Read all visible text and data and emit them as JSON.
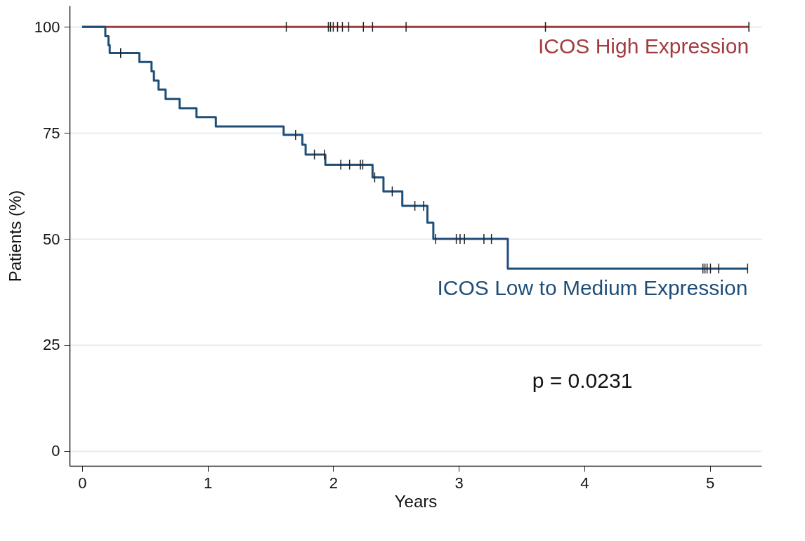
{
  "chart_data": {
    "type": "step",
    "xlabel": "Years",
    "ylabel": "Patients (%)",
    "xlim": [
      -0.1,
      5.41
    ],
    "xticks": [
      0,
      1,
      2,
      3,
      4,
      5
    ],
    "ylim": [
      -3.5,
      105
    ],
    "yticks": [
      0,
      25,
      50,
      75,
      100
    ],
    "grid": "y",
    "legend": false,
    "annotations": [
      "p = 0.0231"
    ],
    "series": [
      {
        "name": "ICOS High Expression",
        "type": "step",
        "color": "#a23b3f",
        "x": [
          0,
          5.31
        ],
        "values": [
          100,
          100
        ]
      },
      {
        "name": "ICOS Low to Medium Expression",
        "type": "step",
        "color": "#1f4e79",
        "x": [
          0,
          0.185,
          0.21,
          0.22,
          0.456,
          0.553,
          0.572,
          0.609,
          0.665,
          0.777,
          0.911,
          1.065,
          1.605,
          1.754,
          1.78,
          1.937,
          2.313,
          2.4,
          2.55,
          2.75,
          2.797,
          3.39,
          5.3
        ],
        "values": [
          100,
          97.8,
          95.7,
          93.8,
          91.7,
          89.5,
          87.3,
          85.2,
          83.0,
          80.8,
          78.7,
          76.5,
          74.5,
          72.2,
          69.9,
          67.5,
          64.5,
          61.2,
          57.8,
          53.8,
          50.0,
          43.0,
          43.0
        ]
      },
      {
        "type": "scatter",
        "color": "#222222",
        "x": [
          1.626,
          1.961,
          1.978,
          2.0,
          2.034,
          2.073,
          2.123,
          2.24,
          2.313,
          2.58,
          3.69,
          5.31
        ],
        "values": [
          100,
          100,
          100,
          100,
          100,
          100,
          100,
          100,
          100,
          100,
          100,
          100
        ]
      },
      {
        "type": "scatter",
        "color": "#222222",
        "x": [
          0.307,
          1.7,
          1.85,
          1.93,
          2.06,
          2.13,
          2.216,
          2.235,
          2.33,
          2.47,
          2.65,
          2.72,
          2.816,
          2.98,
          3.01,
          3.045,
          3.2,
          3.26,
          4.944,
          4.96,
          4.977,
          5.004,
          5.07,
          5.3
        ],
        "values": [
          93.8,
          74.5,
          69.9,
          69.9,
          67.5,
          67.5,
          67.5,
          67.5,
          64.5,
          61.2,
          57.8,
          57.8,
          50,
          50,
          50,
          50,
          50,
          50,
          43,
          43,
          43,
          43,
          43,
          43
        ]
      }
    ]
  }
}
